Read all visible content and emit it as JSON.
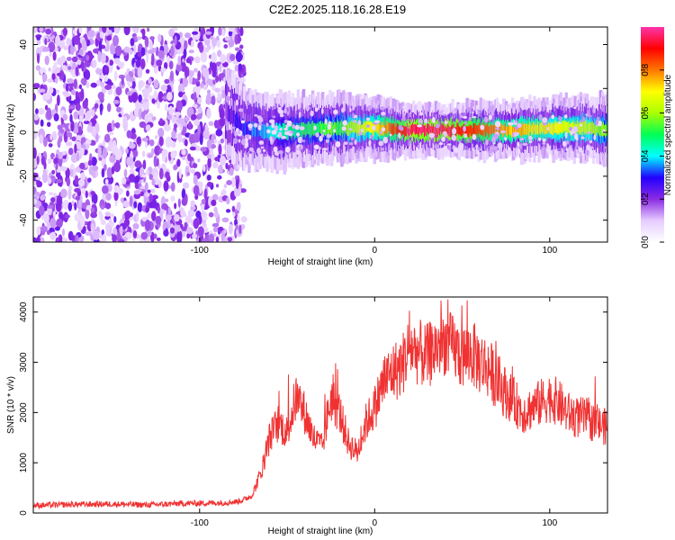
{
  "title": "C2E2.2025.118.16.28.E19",
  "chart_data": [
    {
      "type": "heatmap",
      "xlabel": "Height of straight line (km)",
      "ylabel": "Frequency (Hz)",
      "xlim": [
        -195,
        133
      ],
      "ylim": [
        -50,
        48
      ],
      "x_ticks": [
        -100,
        0,
        100
      ],
      "y_ticks": [
        -40,
        -20,
        0,
        20,
        40
      ],
      "colorbar": {
        "label": "Normalized spectral amplitude",
        "range": [
          0,
          1
        ],
        "ticks": [
          0.0,
          0.2,
          0.4,
          0.6,
          0.8
        ],
        "colors": [
          "#ffffff",
          "#e6ccff",
          "#8a2be2",
          "#2200ff",
          "#00ffff",
          "#00ff55",
          "#aaff00",
          "#ffff00",
          "#ff7700",
          "#ff0000",
          "#ff33aa"
        ]
      },
      "noise_region": {
        "x": [
          -195,
          -75
        ],
        "amplitude": 0.15
      },
      "ridge": [
        {
          "x": -85,
          "freq": 10,
          "amplitude": 0.2
        },
        {
          "x": -75,
          "freq": 2,
          "amplitude": 0.3
        },
        {
          "x": -60,
          "freq": 0,
          "amplitude": 0.4
        },
        {
          "x": -40,
          "freq": 1,
          "amplitude": 0.5
        },
        {
          "x": -20,
          "freq": 2,
          "amplitude": 0.55
        },
        {
          "x": 0,
          "freq": 2,
          "amplitude": 0.7
        },
        {
          "x": 20,
          "freq": 1,
          "amplitude": 0.95
        },
        {
          "x": 40,
          "freq": 1,
          "amplitude": 0.95
        },
        {
          "x": 60,
          "freq": 1,
          "amplitude": 0.85
        },
        {
          "x": 80,
          "freq": 1,
          "amplitude": 0.75
        },
        {
          "x": 100,
          "freq": 2,
          "amplitude": 0.7
        },
        {
          "x": 120,
          "freq": 2,
          "amplitude": 0.65
        },
        {
          "x": 133,
          "freq": 1,
          "amplitude": 0.55
        }
      ]
    },
    {
      "type": "line",
      "xlabel": "Height of straight line (km)",
      "ylabel": "SNR (10 * v/v)",
      "xlim": [
        -195,
        133
      ],
      "ylim": [
        0,
        4300
      ],
      "x_ticks": [
        -100,
        0,
        100
      ],
      "y_ticks": [
        0,
        1000,
        2000,
        3000,
        4000
      ],
      "series": [
        {
          "color": "#f03232",
          "x": [
            -195,
            -170,
            -150,
            -130,
            -110,
            -90,
            -80,
            -75,
            -70,
            -65,
            -60,
            -55,
            -50,
            -45,
            -40,
            -35,
            -30,
            -25,
            -20,
            -15,
            -10,
            -5,
            0,
            5,
            10,
            15,
            20,
            25,
            30,
            35,
            40,
            45,
            50,
            55,
            60,
            65,
            70,
            75,
            80,
            85,
            90,
            95,
            100,
            105,
            110,
            115,
            120,
            125,
            133
          ],
          "values": [
            150,
            170,
            180,
            160,
            190,
            200,
            220,
            260,
            350,
            800,
            1500,
            1800,
            1600,
            2300,
            2000,
            1500,
            1300,
            2300,
            2000,
            1400,
            1200,
            1800,
            2100,
            2600,
            2800,
            2900,
            3300,
            3200,
            3100,
            3300,
            3400,
            3300,
            3100,
            3200,
            3000,
            2900,
            2600,
            2400,
            2200,
            2000,
            2100,
            2200,
            2300,
            2200,
            2000,
            1900,
            1900,
            1800,
            1700
          ],
          "noise": 480
        }
      ]
    }
  ]
}
